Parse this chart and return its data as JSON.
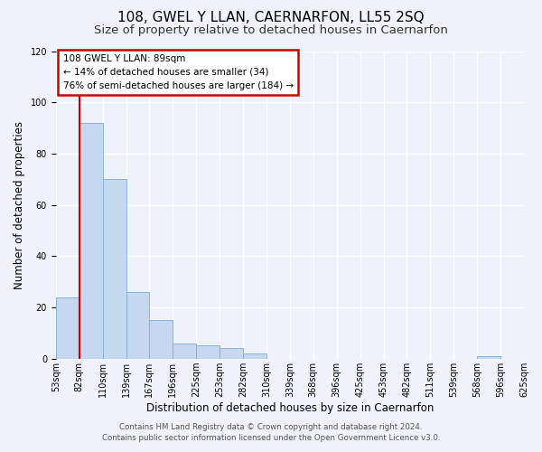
{
  "title": "108, GWEL Y LLAN, CAERNARFON, LL55 2SQ",
  "subtitle": "Size of property relative to detached houses in Caernarfon",
  "xlabel": "Distribution of detached houses by size in Caernarfon",
  "ylabel": "Number of detached properties",
  "bar_values": [
    24,
    92,
    70,
    26,
    15,
    6,
    5,
    4,
    2,
    0,
    0,
    0,
    0,
    0,
    0,
    0,
    0,
    0,
    1,
    0
  ],
  "bin_labels": [
    "53sqm",
    "82sqm",
    "110sqm",
    "139sqm",
    "167sqm",
    "196sqm",
    "225sqm",
    "253sqm",
    "282sqm",
    "310sqm",
    "339sqm",
    "368sqm",
    "396sqm",
    "425sqm",
    "453sqm",
    "482sqm",
    "511sqm",
    "539sqm",
    "568sqm",
    "596sqm",
    "625sqm"
  ],
  "bar_color": "#c5d8f0",
  "bar_edge_color": "#7aafd4",
  "vline_x": 1,
  "vline_color": "#cc0000",
  "ylim": [
    0,
    120
  ],
  "yticks": [
    0,
    20,
    40,
    60,
    80,
    100,
    120
  ],
  "annotation_title": "108 GWEL Y LLAN: 89sqm",
  "annotation_line1": "← 14% of detached houses are smaller (34)",
  "annotation_line2": "76% of semi-detached houses are larger (184) →",
  "annotation_box_color": "#ffffff",
  "annotation_box_edge": "#cc0000",
  "footer1": "Contains HM Land Registry data © Crown copyright and database right 2024.",
  "footer2": "Contains public sector information licensed under the Open Government Licence v3.0.",
  "background_color": "#eef2fa",
  "grid_color": "#ffffff",
  "title_fontsize": 11,
  "subtitle_fontsize": 9.5,
  "axis_label_fontsize": 8.5,
  "tick_fontsize": 7,
  "footer_fontsize": 6.2,
  "annotation_fontsize": 7.5
}
